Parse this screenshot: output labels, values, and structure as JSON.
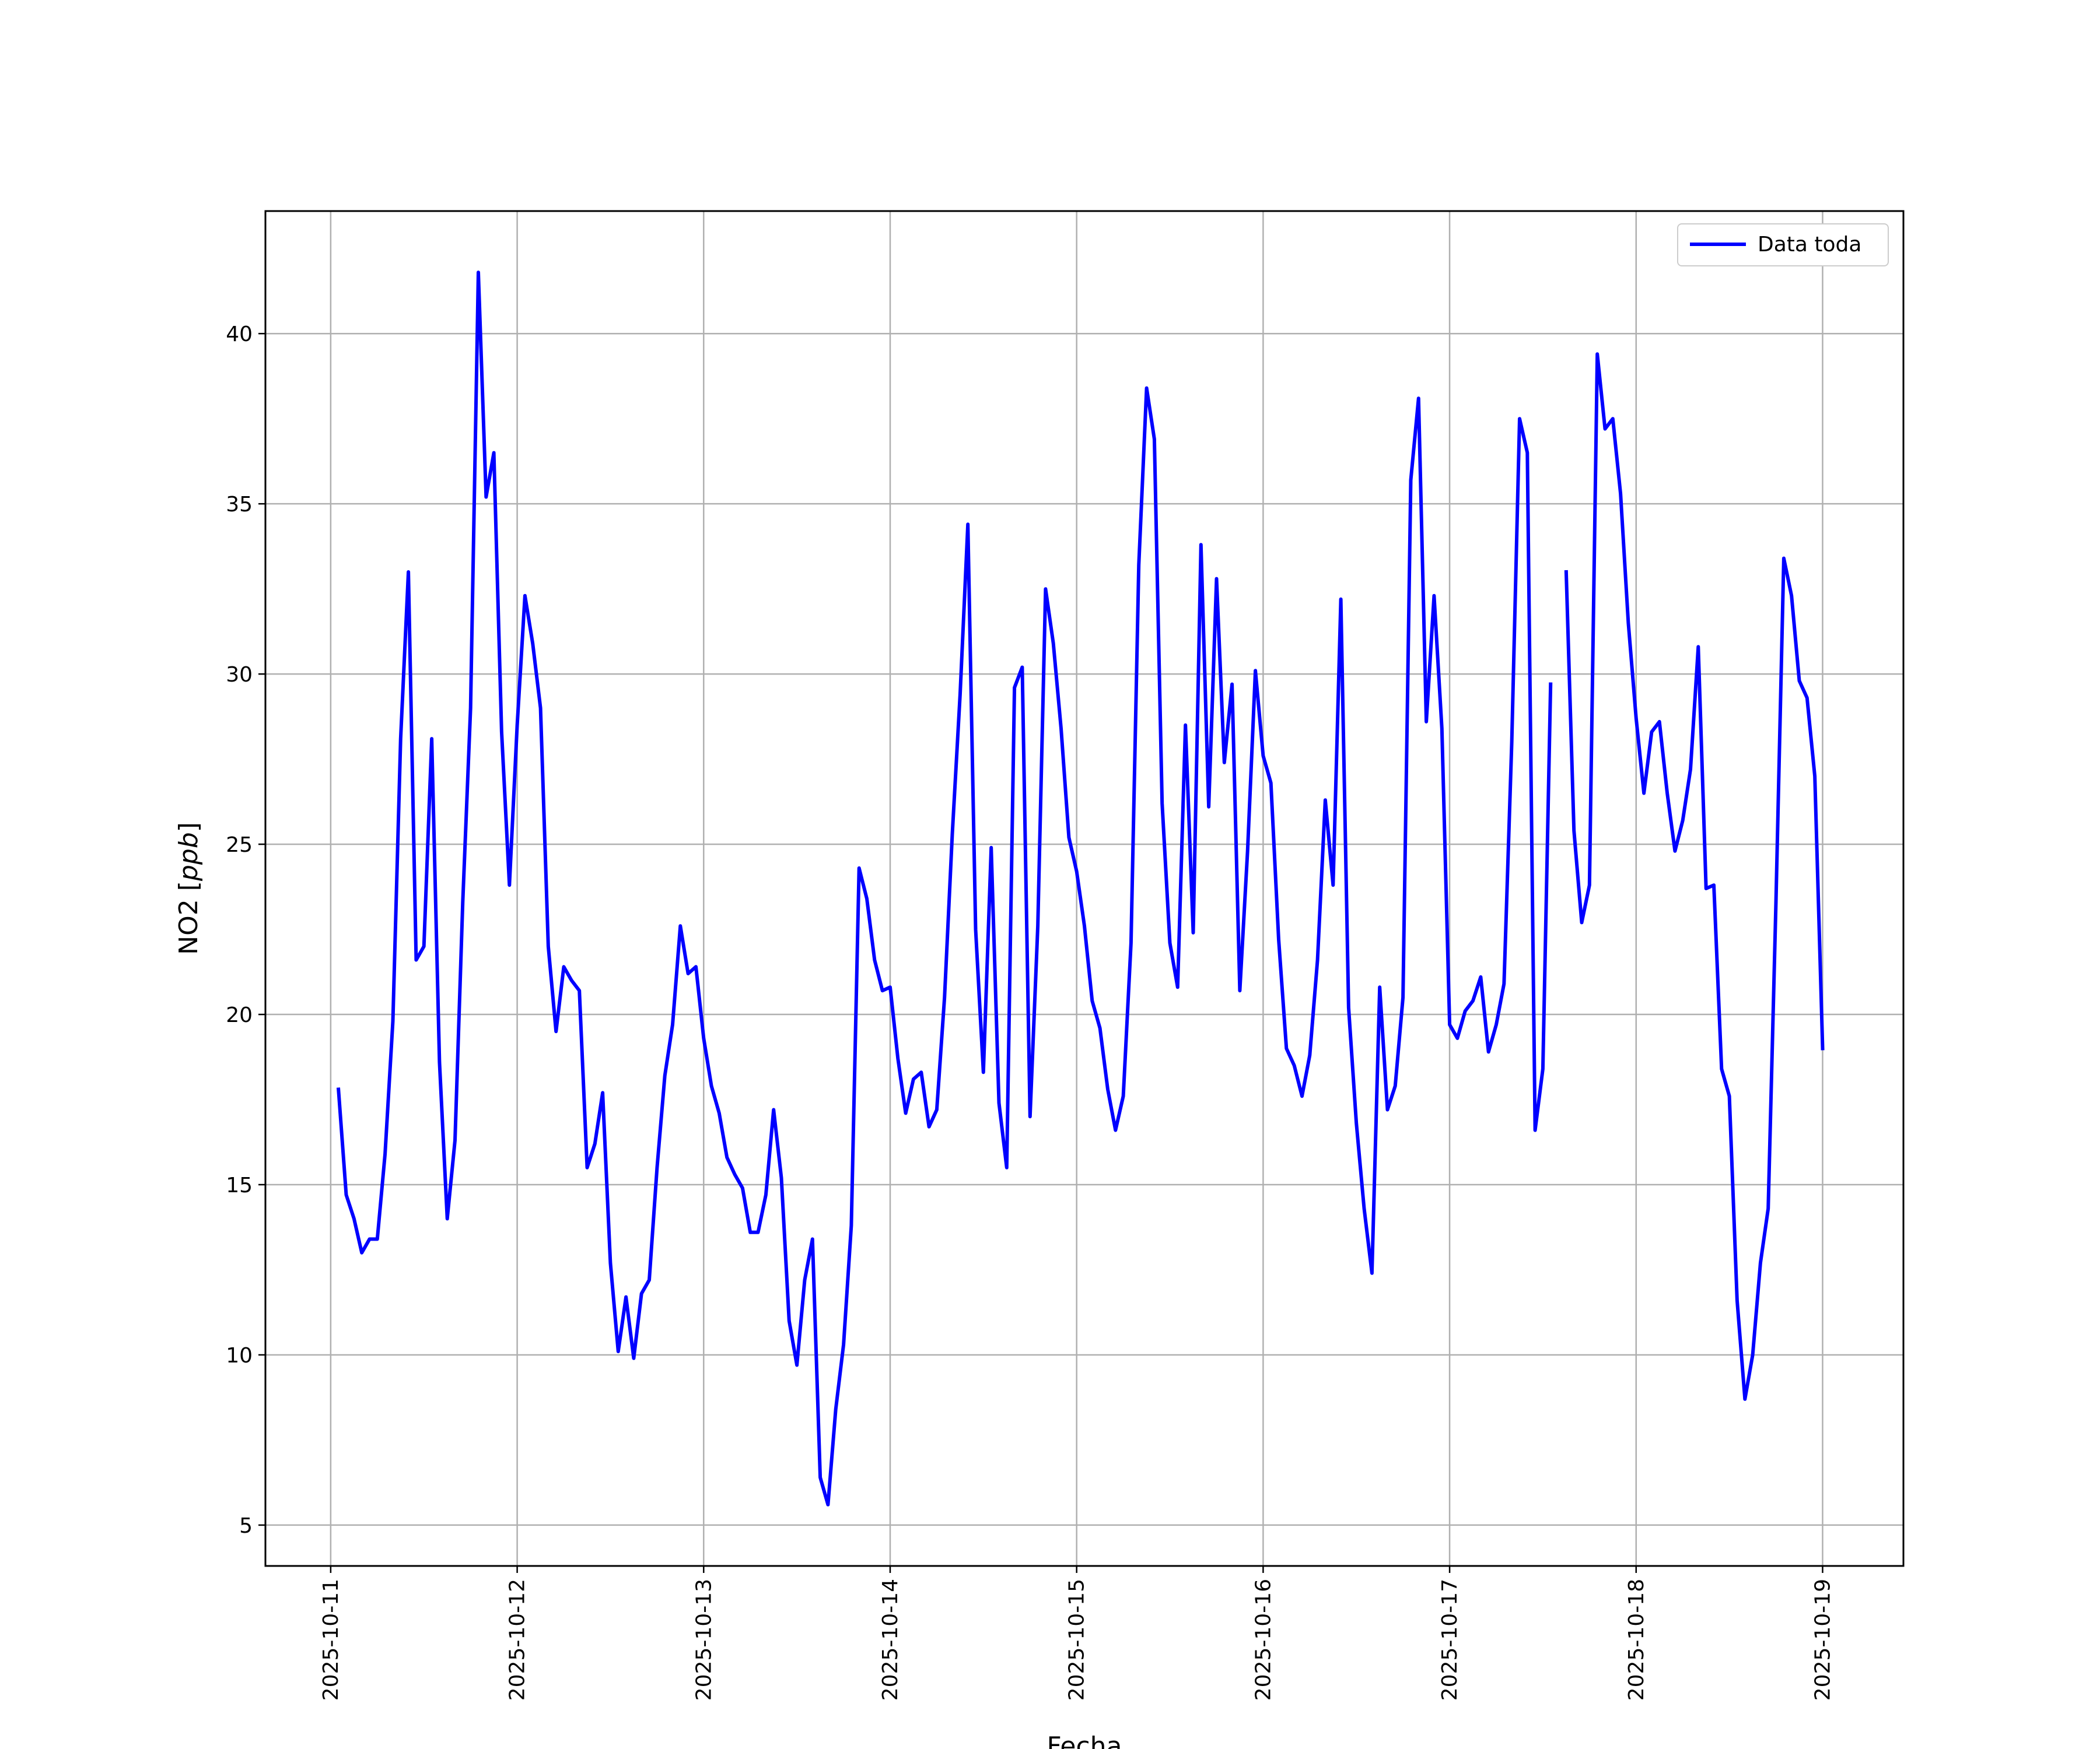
{
  "chart_data": {
    "type": "line",
    "xlabel": "Fecha",
    "ylabel": "NO2 [ppb]",
    "ylabel_unit": "ppb",
    "ylim": [
      3.8,
      43.6
    ],
    "xlim": [
      "2025-10-10 15:36",
      "2025-10-19 10:24"
    ],
    "xticks": [
      "2025-10-11",
      "2025-10-12",
      "2025-10-13",
      "2025-10-14",
      "2025-10-15",
      "2025-10-16",
      "2025-10-17",
      "2025-10-18",
      "2025-10-19"
    ],
    "yticks": [
      5,
      10,
      15,
      20,
      25,
      30,
      35,
      40
    ],
    "grid": true,
    "legend_position": "upper right",
    "series": [
      {
        "name": "Data toda",
        "color": "#0000ff",
        "start": "2025-10-11 01:00",
        "interval_hours": 1,
        "values": [
          17.8,
          14.7,
          14.0,
          13.0,
          13.4,
          13.4,
          15.9,
          19.8,
          28.1,
          33.0,
          21.6,
          22.0,
          28.1,
          18.6,
          14.0,
          16.3,
          23.3,
          29.0,
          41.8,
          35.2,
          36.5,
          28.3,
          23.8,
          28.5,
          32.3,
          30.9,
          29.0,
          22.0,
          19.5,
          21.4,
          21.0,
          20.7,
          15.5,
          16.2,
          17.7,
          12.7,
          10.1,
          11.7,
          9.9,
          11.8,
          12.2,
          15.5,
          18.2,
          19.7,
          22.6,
          21.2,
          21.4,
          19.3,
          17.9,
          17.1,
          15.8,
          15.3,
          14.9,
          13.6,
          13.6,
          14.7,
          17.2,
          15.2,
          11.0,
          9.7,
          12.2,
          13.4,
          6.4,
          5.6,
          8.4,
          10.3,
          13.8,
          24.3,
          23.4,
          21.6,
          20.7,
          20.8,
          18.7,
          17.1,
          18.1,
          18.3,
          16.7,
          17.2,
          20.5,
          25.3,
          29.4,
          34.4,
          22.5,
          18.3,
          24.9,
          17.4,
          15.5,
          29.6,
          30.2,
          17.0,
          22.6,
          32.5,
          30.9,
          28.4,
          25.2,
          24.2,
          22.6,
          20.4,
          19.6,
          17.8,
          16.6,
          17.6,
          22.1,
          33.2,
          38.4,
          36.9,
          26.2,
          22.1,
          20.8,
          28.5,
          22.4,
          33.8,
          26.1,
          32.8,
          27.4,
          29.7,
          20.7,
          24.8,
          30.1,
          27.6,
          26.8,
          22.2,
          19.0,
          18.5,
          17.6,
          18.8,
          21.6,
          26.3,
          23.8,
          32.2,
          20.2,
          16.8,
          14.3,
          12.4,
          20.8,
          17.2,
          17.9,
          20.5,
          35.7,
          38.1,
          28.6,
          32.3,
          28.4,
          19.7,
          19.3,
          20.1,
          20.4,
          21.1,
          18.9,
          19.7,
          20.9,
          28.0,
          37.5,
          36.5,
          16.6,
          18.4,
          29.7,
          null,
          33.0,
          25.4,
          22.7,
          23.8,
          39.4,
          37.2,
          37.5,
          35.3,
          31.5,
          28.7,
          26.5,
          28.3,
          28.6,
          26.5,
          24.8,
          25.7,
          27.2,
          30.8,
          23.7,
          23.8,
          18.4,
          17.6,
          11.6,
          8.7,
          10.0,
          12.7,
          14.3,
          23.3,
          33.4,
          32.3,
          29.8,
          29.3,
          27.0,
          19.0
        ]
      }
    ]
  }
}
